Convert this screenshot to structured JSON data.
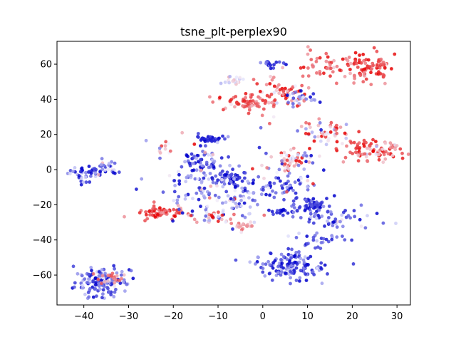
{
  "chart_data": {
    "type": "scatter",
    "title": "tsne_plt-perplex90",
    "xlabel": "",
    "ylabel": "",
    "xlim": [
      -46,
      33
    ],
    "ylim": [
      -77,
      73
    ],
    "xticks": [
      -40,
      -30,
      -20,
      -10,
      0,
      10,
      20,
      30
    ],
    "yticks": [
      -60,
      -40,
      -20,
      0,
      20,
      40,
      60
    ],
    "grid": false,
    "legend": "none",
    "colormap": "seismic",
    "colors": {
      "blue": "#0000cc",
      "white": "#f2f2ff",
      "red": "#e60000"
    },
    "clusters": [
      {
        "cx": -40,
        "cy": -2,
        "sx": 1.8,
        "sy": 2.5,
        "n": 40,
        "c": 0.2,
        "cs": 0.15
      },
      {
        "cx": -35,
        "cy": 0,
        "sx": 1.5,
        "sy": 2.5,
        "n": 30,
        "c": 0.2,
        "cs": 0.2
      },
      {
        "cx": -36,
        "cy": -64,
        "sx": 3,
        "sy": 4,
        "n": 140,
        "c": 0.2,
        "cs": 0.15
      },
      {
        "cx": -34,
        "cy": -62,
        "sx": 1.5,
        "sy": 1.5,
        "n": 20,
        "c": 0.75,
        "cs": 0.1
      },
      {
        "cx": -23,
        "cy": -25,
        "sx": 3,
        "sy": 2,
        "n": 60,
        "c": 0.85,
        "cs": 0.1
      },
      {
        "cx": -22,
        "cy": 11,
        "sx": 1,
        "sy": 2,
        "n": 10,
        "c": 0.7,
        "cs": 0.2
      },
      {
        "cx": -14,
        "cy": 4,
        "sx": 2,
        "sy": 4,
        "n": 60,
        "c": 0.2,
        "cs": 0.15
      },
      {
        "cx": -12,
        "cy": 17,
        "sx": 1.5,
        "sy": 1,
        "n": 30,
        "c": 0.05,
        "cs": 0.05
      },
      {
        "cx": -8,
        "cy": -4,
        "sx": 2.5,
        "sy": 2.5,
        "n": 50,
        "c": 0.1,
        "cs": 0.1
      },
      {
        "cx": -14,
        "cy": -14,
        "sx": 5,
        "sy": 8,
        "n": 80,
        "c": 0.3,
        "cs": 0.2
      },
      {
        "cx": -12,
        "cy": -27,
        "sx": 2.5,
        "sy": 1.5,
        "n": 30,
        "c": 0.6,
        "cs": 0.25
      },
      {
        "cx": -4,
        "cy": -32,
        "sx": 1.5,
        "sy": 1,
        "n": 20,
        "c": 0.65,
        "cs": 0.1
      },
      {
        "cx": -5,
        "cy": -20,
        "sx": 2,
        "sy": 4,
        "n": 25,
        "c": 0.4,
        "cs": 0.25
      },
      {
        "cx": -6,
        "cy": 51,
        "sx": 1.5,
        "sy": 1.5,
        "n": 20,
        "c": 0.5,
        "cs": 0.1
      },
      {
        "cx": -4,
        "cy": 38,
        "sx": 3,
        "sy": 2,
        "n": 60,
        "c": 0.85,
        "cs": 0.1
      },
      {
        "cx": 4,
        "cy": 45,
        "sx": 3,
        "sy": 5,
        "n": 60,
        "c": 0.8,
        "cs": 0.15
      },
      {
        "cx": 9,
        "cy": 40,
        "sx": 2,
        "sy": 2,
        "n": 30,
        "c": 0.25,
        "cs": 0.2
      },
      {
        "cx": 2,
        "cy": 60,
        "sx": 2,
        "sy": 1,
        "n": 20,
        "c": 0.1,
        "cs": 0.1
      },
      {
        "cx": 15,
        "cy": 59,
        "sx": 4,
        "sy": 4,
        "n": 60,
        "c": 0.8,
        "cs": 0.15
      },
      {
        "cx": 24,
        "cy": 59,
        "sx": 3,
        "sy": 4,
        "n": 70,
        "c": 0.85,
        "cs": 0.12
      },
      {
        "cx": 14,
        "cy": 21,
        "sx": 3,
        "sy": 3,
        "n": 50,
        "c": 0.7,
        "cs": 0.25
      },
      {
        "cx": 21,
        "cy": 12,
        "sx": 3,
        "sy": 3,
        "n": 40,
        "c": 0.85,
        "cs": 0.1
      },
      {
        "cx": 26,
        "cy": 10,
        "sx": 2.5,
        "sy": 3,
        "n": 50,
        "c": 0.75,
        "cs": 0.15
      },
      {
        "cx": 6,
        "cy": 5,
        "sx": 2.5,
        "sy": 3,
        "n": 50,
        "c": 0.6,
        "cs": 0.25
      },
      {
        "cx": 3,
        "cy": -10,
        "sx": 4,
        "sy": 4,
        "n": 50,
        "c": 0.15,
        "cs": 0.15
      },
      {
        "cx": 4,
        "cy": -24,
        "sx": 1.5,
        "sy": 1,
        "n": 15,
        "c": 0.05,
        "cs": 0.05
      },
      {
        "cx": 11,
        "cy": -20,
        "sx": 2.5,
        "sy": 2,
        "n": 60,
        "c": 0.1,
        "cs": 0.1
      },
      {
        "cx": 16,
        "cy": -28,
        "sx": 4,
        "sy": 3,
        "n": 50,
        "c": 0.2,
        "cs": 0.15
      },
      {
        "cx": 12,
        "cy": -40,
        "sx": 3,
        "sy": 3,
        "n": 30,
        "c": 0.2,
        "cs": 0.15
      },
      {
        "cx": 6,
        "cy": -55,
        "sx": 4,
        "sy": 4,
        "n": 140,
        "c": 0.15,
        "cs": 0.12
      },
      {
        "cx": -2,
        "cy": 0,
        "sx": 14,
        "sy": 12,
        "n": 70,
        "c": 0.3,
        "cs": 0.3
      }
    ]
  }
}
